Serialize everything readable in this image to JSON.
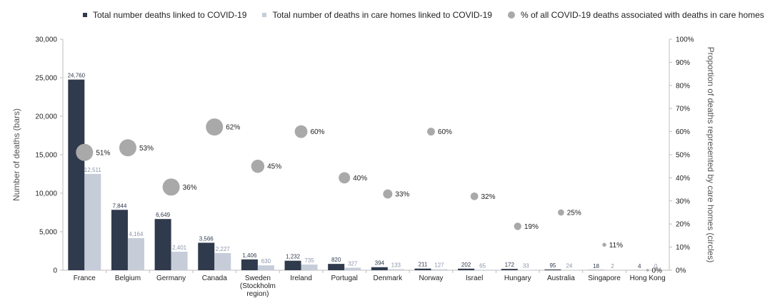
{
  "legend": {
    "total_label": "Total number deaths linked to COVID-19",
    "care_label": "Total number of deaths in care homes linked to COVID-19",
    "pct_label": "% of all COVID-19 deaths associated with deaths in care homes"
  },
  "colors": {
    "total": "#303a4d",
    "care": "#c6cdd9",
    "circle": "#a9a9a9",
    "total_text": "#303a4d",
    "care_text": "#8a95a8"
  },
  "chart_data": {
    "type": "bar",
    "ylabel": "Number of deaths (bars)",
    "y2label": "Proportion of deaths represented by care homes (circles)",
    "ylim": [
      0,
      30000
    ],
    "y2lim": [
      0,
      100
    ],
    "yticks": [
      "0",
      "5,000",
      "10,000",
      "15,000",
      "20,000",
      "25,000",
      "30,000"
    ],
    "y2ticks": [
      "0%",
      "10%",
      "20%",
      "30%",
      "40%",
      "50%",
      "60%",
      "70%",
      "80%",
      "90%",
      "100%"
    ],
    "categories": [
      [
        "France"
      ],
      [
        "Belgium"
      ],
      [
        "Germany"
      ],
      [
        "Canada"
      ],
      [
        "Sweden",
        "(Stockholm",
        "region)"
      ],
      [
        "Ireland"
      ],
      [
        "Portugal"
      ],
      [
        "Denmark"
      ],
      [
        "Norway"
      ],
      [
        "Israel"
      ],
      [
        "Hungary"
      ],
      [
        "Australia"
      ],
      [
        "Singapore"
      ],
      [
        "Hong Kong"
      ]
    ],
    "series": [
      {
        "name": "Total number deaths linked to COVID-19",
        "values": [
          24760,
          7844,
          6649,
          3566,
          1406,
          1232,
          820,
          394,
          211,
          202,
          172,
          95,
          18,
          4
        ],
        "labels": [
          "24,760",
          "7,844",
          "6,649",
          "3,566",
          "1,406",
          "1,232",
          "820",
          "394",
          "211",
          "202",
          "172",
          "95",
          "18",
          "4"
        ]
      },
      {
        "name": "Total number of deaths in care homes linked to COVID-19",
        "values": [
          12511,
          4164,
          2401,
          2227,
          630,
          735,
          327,
          133,
          127,
          65,
          33,
          24,
          2,
          0
        ],
        "labels": [
          "12,511",
          "4,164",
          "2,401",
          "2,227",
          "630",
          "735",
          "327",
          "133",
          "127",
          "65",
          "33",
          "24",
          "2",
          "0"
        ]
      },
      {
        "name": "% of all COVID-19 deaths associated with deaths in care homes",
        "values": [
          51,
          53,
          36,
          62,
          45,
          60,
          40,
          33,
          60,
          32,
          19,
          25,
          11,
          0
        ],
        "labels": [
          "51%",
          "53%",
          "36%",
          "62%",
          "45%",
          "60%",
          "40%",
          "33%",
          "60%",
          "32%",
          "19%",
          "25%",
          "11%",
          "0%"
        ]
      }
    ],
    "grid": false,
    "legend_position": "top"
  }
}
